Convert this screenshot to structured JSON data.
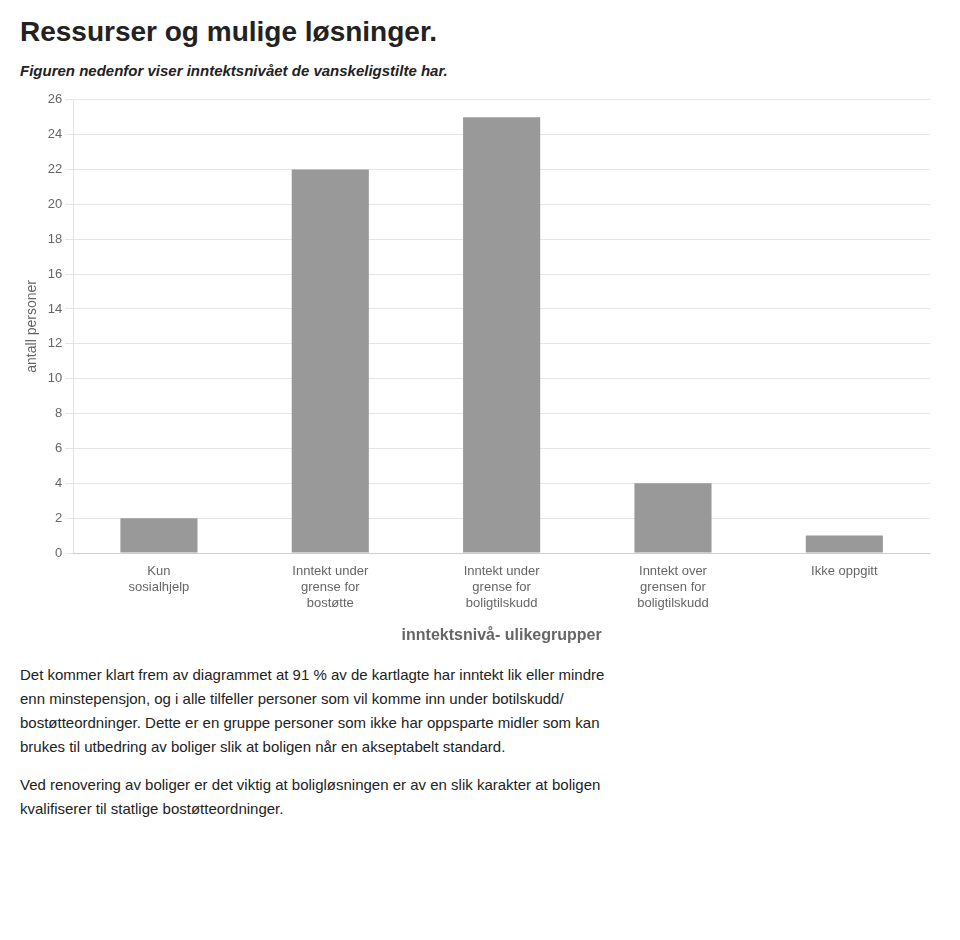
{
  "chart_data": {
    "type": "bar",
    "title": "Ressurser og mulige løsninger.",
    "subtitle": "Figuren nedenfor viser inntektsnivået de vanskeligstilte har.",
    "categories": [
      "Kun\nsosialhjelp",
      "Inntekt under\ngrense for\nbostøtte",
      "Inntekt under\ngrense for\nboligtilskudd",
      "Inntekt over\ngrensen for\nboligtilskudd",
      "Ikke oppgitt"
    ],
    "values": [
      2,
      22,
      25,
      4,
      1
    ],
    "color": "#999999",
    "x_label": "inntektsnivå- ulikegrupper",
    "y_label": "antall personer",
    "ylim": [
      0,
      26
    ],
    "yticks": [
      0,
      2,
      4,
      6,
      8,
      10,
      12,
      14,
      16,
      18,
      20,
      22,
      24,
      26
    ],
    "grid": true,
    "annotations": [
      "Det kommer klart frem av diagrammet at 91 % av de kartlagte har inntekt lik eller mindre\nenn minstepensjon, og i alle tilfeller personer som vil komme inn under botilskudd/\nbostøtteordninger. Dette er en gruppe personer som ikke har oppsparte midler som kan\nbrukes til utbedring av boliger slik at boligen når en akseptabelt standard.",
      "Ved renovering av boliger er det viktig at boligløsningen er av en slik karakter at boligen\nkvalifiserer til statlige bostøtteordninger."
    ]
  }
}
